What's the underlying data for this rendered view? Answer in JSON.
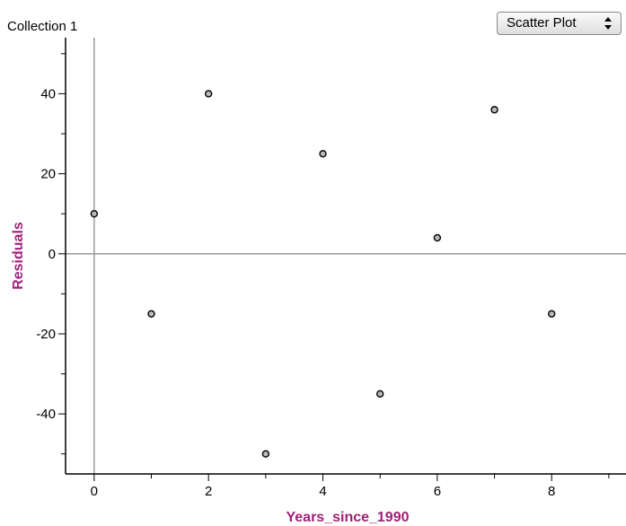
{
  "collection_title": "Collection 1",
  "plot_type_select": {
    "selected": "Scatter Plot"
  },
  "chart_data": {
    "type": "scatter",
    "xlabel": "Years_since_1990",
    "ylabel": "Residuals",
    "xlim": [
      -0.5,
      9.3
    ],
    "ylim": [
      -55,
      54
    ],
    "x_ticks": [
      0,
      2,
      4,
      6,
      8
    ],
    "x_minor_ticks": [
      1,
      3,
      5,
      7,
      9
    ],
    "y_ticks": [
      40,
      20,
      0,
      -20,
      -40
    ],
    "y_minor_ticks": [
      50,
      30,
      10,
      -10,
      -30,
      -50
    ],
    "reference_lines": {
      "x": 0,
      "y": 0
    },
    "grid": false,
    "legend": "none",
    "points": [
      {
        "x": 0,
        "y": 10
      },
      {
        "x": 1,
        "y": -15
      },
      {
        "x": 2,
        "y": 40
      },
      {
        "x": 3,
        "y": -50
      },
      {
        "x": 4,
        "y": 25
      },
      {
        "x": 5,
        "y": -35
      },
      {
        "x": 6,
        "y": 4
      },
      {
        "x": 7,
        "y": 36
      },
      {
        "x": 8,
        "y": -15
      }
    ],
    "colors": {
      "axis_title": "#a0207a",
      "point_fill": "#b8b8b8",
      "point_stroke": "#000000",
      "reference_line": "#9a9a9a",
      "axis": "#000000"
    }
  }
}
